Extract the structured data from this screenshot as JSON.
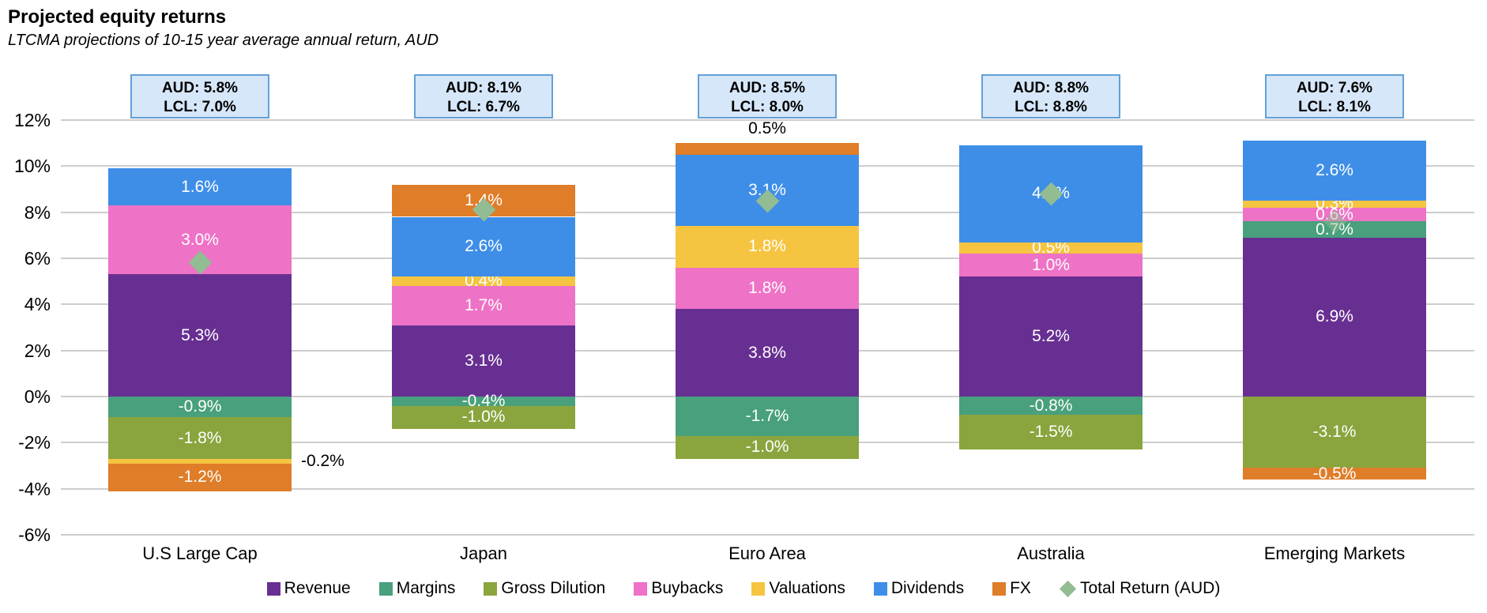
{
  "title": "Projected equity returns",
  "subtitle": "LTCMA projections of 10-15 year average annual return, AUD",
  "annotation_boxes": [
    {
      "aud": "AUD: 5.8%",
      "lcl": "LCL: 7.0%"
    },
    {
      "aud": "AUD: 8.1%",
      "lcl": "LCL: 6.7%"
    },
    {
      "aud": "AUD: 8.5%",
      "lcl": "LCL: 8.0%"
    },
    {
      "aud": "AUD: 8.8%",
      "lcl": "LCL: 8.8%"
    },
    {
      "aud": "AUD: 7.6%",
      "lcl": "LCL: 8.1%"
    }
  ],
  "chart_data": {
    "type": "bar",
    "stacked": true,
    "grid": true,
    "legend_position": "bottom",
    "categories": [
      "U.S Large Cap",
      "Japan",
      "Euro Area",
      "Australia",
      "Emerging Markets"
    ],
    "ylim": [
      -6,
      12
    ],
    "yticks": [
      {
        "value": 12,
        "label": "12%"
      },
      {
        "value": 10,
        "label": "10%"
      },
      {
        "value": 8,
        "label": "8%"
      },
      {
        "value": 6,
        "label": "6%"
      },
      {
        "value": 4,
        "label": "4%"
      },
      {
        "value": 2,
        "label": "2%"
      },
      {
        "value": 0,
        "label": "0%"
      },
      {
        "value": -2,
        "label": "-2%"
      },
      {
        "value": -4,
        "label": "-4%"
      },
      {
        "value": -6,
        "label": "-6%"
      }
    ],
    "series": [
      {
        "name": "Revenue",
        "color": "#682f92",
        "values": [
          5.3,
          3.1,
          3.8,
          5.2,
          6.9
        ],
        "labels": [
          "5.3%",
          "3.1%",
          "3.8%",
          "5.2%",
          "6.9%"
        ]
      },
      {
        "name": "Margins",
        "color": "#48a07c",
        "values": [
          -0.9,
          -0.4,
          -1.7,
          -0.8,
          0.7
        ],
        "labels": [
          "-0.9%",
          "-0.4%",
          "-1.7%",
          "-0.8%",
          "0.7%"
        ]
      },
      {
        "name": "Gross Dilution",
        "color": "#8aa53e",
        "values": [
          -1.8,
          -1.0,
          -1.0,
          -1.5,
          -3.1
        ],
        "labels": [
          "-1.8%",
          "-1.0%",
          "-1.0%",
          "-1.5%",
          "-3.1%"
        ]
      },
      {
        "name": "Buybacks",
        "color": "#ee72c6",
        "values": [
          3.0,
          1.7,
          1.8,
          1.0,
          0.6
        ],
        "labels": [
          "3.0%",
          "1.7%",
          "1.8%",
          "1.0%",
          "0.6%"
        ]
      },
      {
        "name": "Valuations",
        "color": "#f5c440",
        "values": [
          -0.2,
          0.4,
          1.8,
          0.5,
          0.3
        ],
        "labels": [
          null,
          "0.4%",
          "1.8%",
          "0.5%",
          "0.3%"
        ]
      },
      {
        "name": "Dividends",
        "color": "#3e8ee8",
        "values": [
          1.6,
          2.6,
          3.1,
          4.2,
          2.6
        ],
        "labels": [
          "1.6%",
          "2.6%",
          "3.1%",
          "4.2%",
          "2.6%"
        ]
      },
      {
        "name": "FX",
        "color": "#df7d28",
        "values": [
          -1.2,
          1.4,
          0.5,
          0.0,
          -0.5
        ],
        "labels": [
          "-1.2%",
          "1.4%",
          null,
          null,
          "-0.5%"
        ]
      }
    ],
    "marker_series": {
      "name": "Total Return (AUD)",
      "shape": "diamond",
      "color": "#92bc92",
      "values": [
        5.8,
        8.1,
        8.5,
        8.8,
        7.6
      ],
      "opacity": [
        1,
        1,
        1,
        1,
        0.45
      ]
    },
    "outside_labels": [
      {
        "category_index": 0,
        "series": "Valuations",
        "text": "-0.2%",
        "position": "right",
        "at": -2.8
      },
      {
        "category_index": 2,
        "series": "FX",
        "text": "0.5%",
        "position": "above",
        "at": 11.0
      }
    ]
  },
  "colors": {
    "box_bg": "#d6e7f9",
    "box_border": "#64a0d7",
    "gridline": "#cdcdcd",
    "inside_label": "#ffffff",
    "text": "#000000"
  }
}
